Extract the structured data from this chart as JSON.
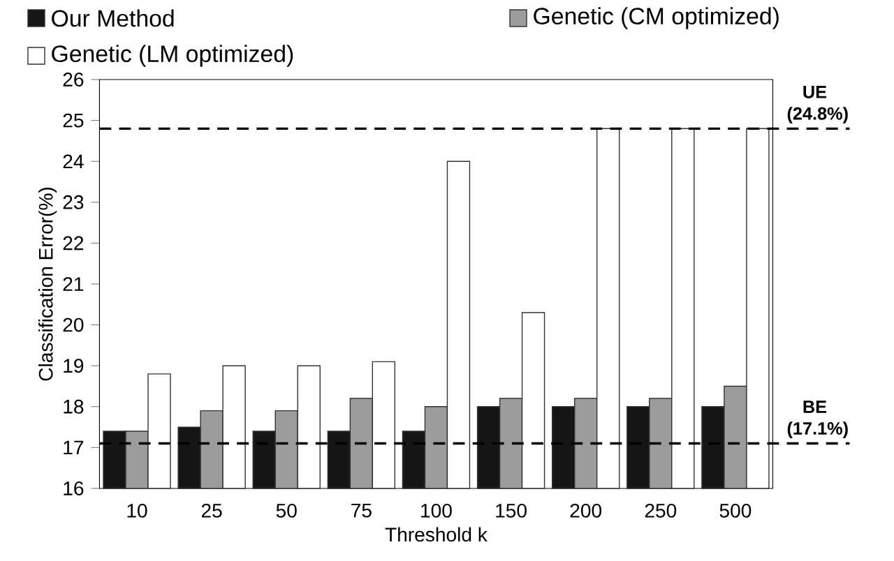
{
  "chart_data": {
    "type": "bar",
    "xlabel": "Threshold k",
    "ylabel": "Classification Error(%)",
    "categories": [
      "10",
      "25",
      "50",
      "75",
      "100",
      "150",
      "200",
      "250",
      "500"
    ],
    "series": [
      {
        "name": "Our Method",
        "color": "#161616",
        "values": [
          17.4,
          17.5,
          17.4,
          17.4,
          17.4,
          18.0,
          18.0,
          18.0,
          18.0
        ]
      },
      {
        "name": "Genetic (CM optimized)",
        "color": "#9c9c9c",
        "values": [
          17.4,
          17.9,
          17.9,
          18.2,
          18.0,
          18.2,
          18.2,
          18.2,
          18.5
        ]
      },
      {
        "name": "Genetic (LM optimized)",
        "color": "#ffffff",
        "values": [
          18.8,
          19.0,
          19.0,
          19.1,
          24.0,
          20.3,
          24.8,
          24.8,
          24.8
        ]
      }
    ],
    "ylim": [
      16,
      26
    ],
    "yticks": [
      16,
      17,
      18,
      19,
      20,
      21,
      22,
      23,
      24,
      25,
      26
    ],
    "ref_lines": [
      {
        "axis": "y",
        "value": 24.8,
        "label": "UE (24.8%)",
        "line_style": "dashed"
      },
      {
        "axis": "y",
        "value": 17.1,
        "label": "BE (17.1%)",
        "line_style": "dashed"
      }
    ],
    "legend": "top",
    "grid": false
  }
}
